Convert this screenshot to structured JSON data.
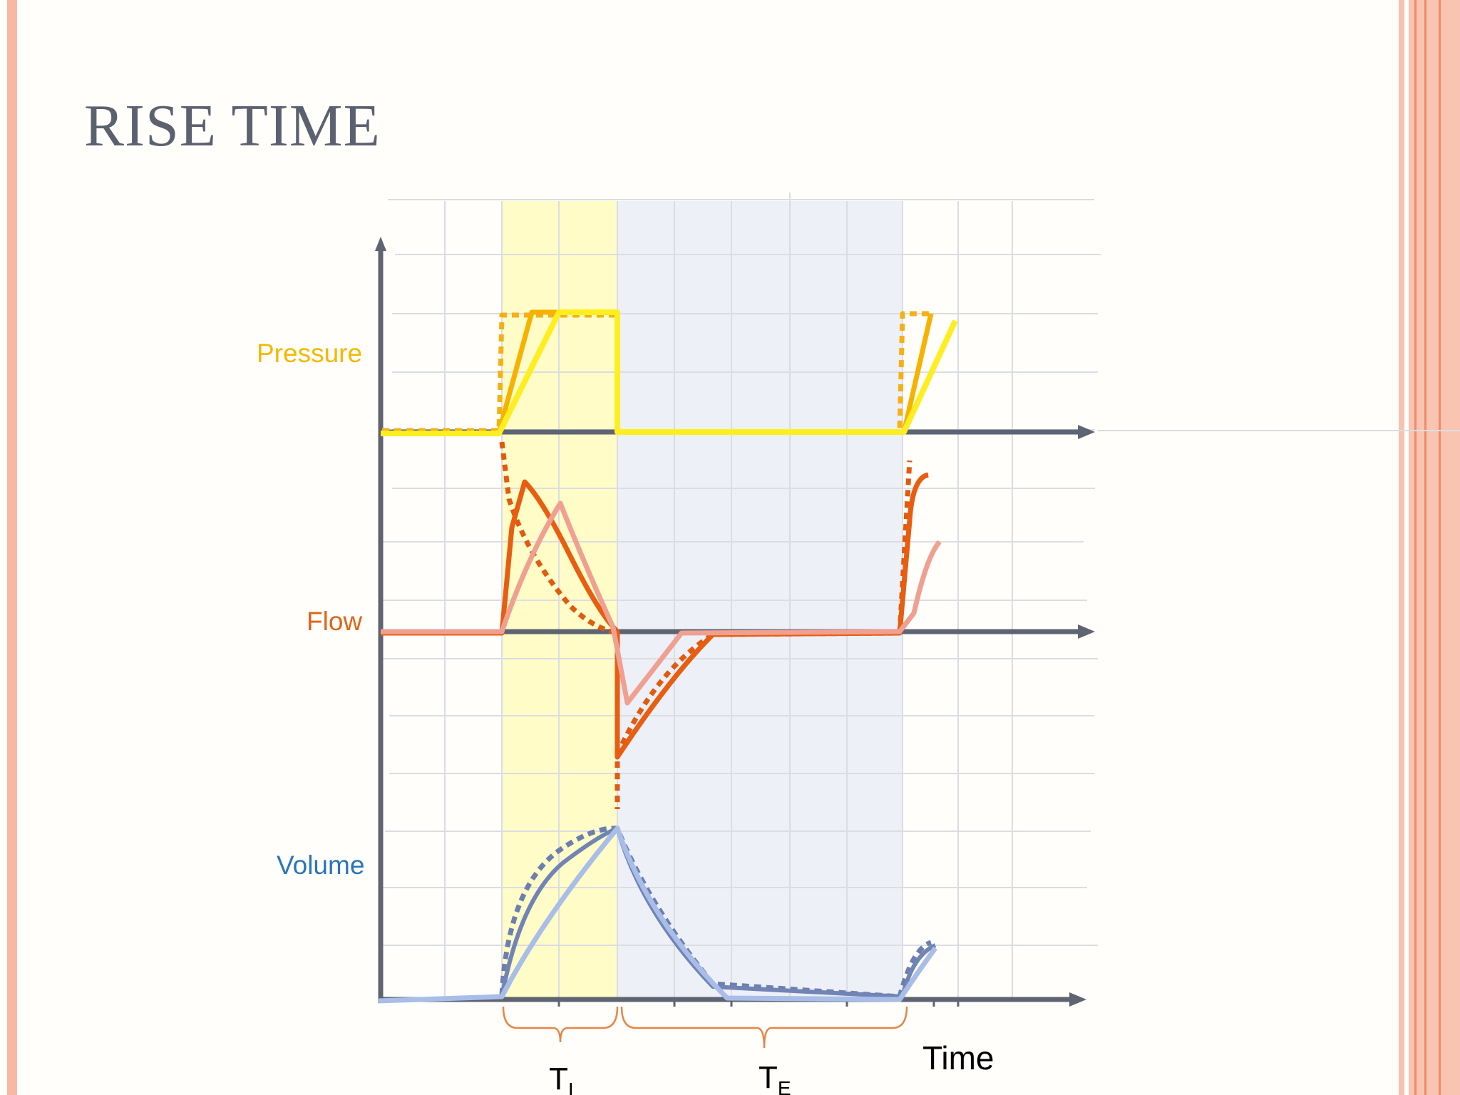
{
  "slide": {
    "title": "RISE TIME"
  },
  "diagram": {
    "labels": {
      "pressure": "Pressure",
      "flow": "Flow",
      "volume": "Volume",
      "time": "Time",
      "ti_main": "T",
      "ti_sub": "I",
      "te_main": "T",
      "te_sub": "E"
    },
    "colors": {
      "pressure_label": "#f5b800",
      "flow_label": "#e0641a",
      "volume_label": "#2a76b8",
      "pressure_dotted": "#f5b017",
      "pressure_mid": "#f7b200",
      "pressure_slow": "#ffee1f",
      "flow_dotted": "#e05a10",
      "flow_mid": "#e85d0f",
      "flow_slow": "#f0a090",
      "volume_dotted": "#6c7fb0",
      "volume_mid": "#7184b4",
      "volume_slow": "#a8bde8",
      "axis": "#5f6472",
      "inspiration_band": "#fffcc8",
      "expiration_band": "#eef0f8",
      "bracket": "#e88545"
    }
  }
}
